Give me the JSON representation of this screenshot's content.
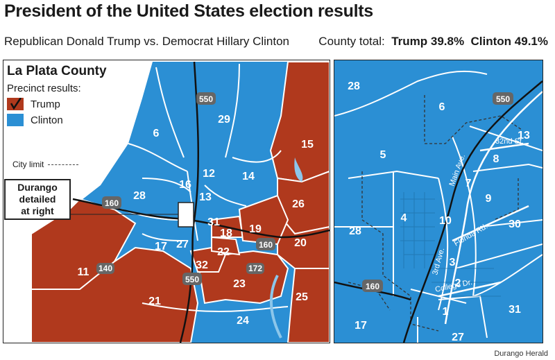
{
  "header": {
    "title": "President of the United States election results",
    "subtitle": "Republican Donald Trump vs. Democrat Hillary Clinton",
    "county_total_label": "County total:",
    "trump_total": "Trump 39.8%",
    "clinton_total": "Clinton 49.1%"
  },
  "legend": {
    "county_name": "La Plata County",
    "subtitle": "Precinct results:",
    "trump_label": "Trump",
    "clinton_label": "Clinton",
    "city_limit_label": "City limit",
    "callout": [
      "Durango",
      "detailed",
      "at right"
    ]
  },
  "colors": {
    "trump": "#b0391d",
    "clinton": "#2b8fd4",
    "road": "#666666",
    "stroke": "#ffffff"
  },
  "county_map": {
    "trump_precincts": [
      "15",
      "26",
      "20",
      "25",
      "11",
      "21",
      "23",
      "32",
      "22",
      "18",
      "19"
    ],
    "clinton_precincts": [
      "29",
      "6",
      "12",
      "14",
      "16",
      "13",
      "28",
      "31",
      "17",
      "27",
      "24"
    ],
    "roads": [
      "550",
      "160",
      "140",
      "172",
      "160",
      "550"
    ]
  },
  "city_map": {
    "clinton_precincts": [
      "28",
      "6",
      "13",
      "8",
      "5",
      "7",
      "9",
      "4",
      "10",
      "30",
      "28",
      "3",
      "2",
      "1",
      "17",
      "31",
      "27"
    ],
    "roads": [
      "550",
      "160"
    ],
    "streets": [
      "32nd St.",
      "Main Ave.",
      "Florida Rd.",
      "3rd Ave.",
      "College Dr."
    ]
  },
  "credit": "Durango Herald"
}
